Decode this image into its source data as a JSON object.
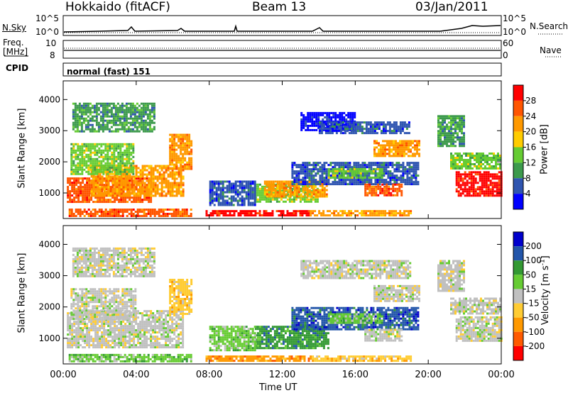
{
  "header": {
    "station": "Hokkaido (fitACF)",
    "beam": "Beam 13",
    "date": "03/Jan/2011"
  },
  "top_panels": {
    "nsky_label": "N.Sky",
    "nsky_ticks_left": [
      "10^5",
      "10^0"
    ],
    "nsearch_label": "N.Search",
    "nsearch_ticks_right": [
      "10^5",
      "10^0"
    ],
    "freq_label": "Freq.",
    "freq_unit": "[MHz]",
    "freq_ticks": [
      "10",
      "8"
    ],
    "nave_label": "Nave",
    "nave_ticks": [
      "60",
      "0"
    ],
    "cpid_label": "CPID",
    "cpid_text": "normal (fast) 151"
  },
  "colors": {
    "power": [
      "#0000ff",
      "#2f55b0",
      "#3c9a4c",
      "#66cc33",
      "#ffcc00",
      "#ff9900",
      "#ff5500",
      "#ff0000"
    ],
    "velocity": [
      "#ff0000",
      "#ff5a00",
      "#ff9900",
      "#ffcc33",
      "#c0c0c0",
      "#66cc33",
      "#339933",
      "#2255aa",
      "#0000cc"
    ]
  },
  "chart_data": [
    {
      "type": "heatmap",
      "name": "power-panel",
      "ylabel": "Slant Range [km]",
      "xlabel": "",
      "x_ticks": [
        "00:00",
        "04:00",
        "08:00",
        "12:00",
        "16:00",
        "20:00",
        "00:00"
      ],
      "y_ticks": [
        1000,
        2000,
        3000,
        4000
      ],
      "xlim": [
        0,
        24
      ],
      "ylim": [
        180,
        4600
      ],
      "colorbar": {
        "label": "Power [dB]",
        "ticks": [
          "28",
          "24",
          "20",
          "16",
          "12",
          "8",
          "4"
        ]
      },
      "regions": [
        {
          "t0": 0.2,
          "t1": 4.8,
          "r0": 700,
          "r1": 1500,
          "level": 6
        },
        {
          "t0": 1.5,
          "t1": 6.6,
          "r0": 900,
          "r1": 1900,
          "level": 5
        },
        {
          "t0": 0.4,
          "t1": 3.8,
          "r0": 1600,
          "r1": 2600,
          "level": 3
        },
        {
          "t0": 5.8,
          "t1": 7.0,
          "r0": 1800,
          "r1": 2900,
          "level": 5
        },
        {
          "t0": 0.5,
          "t1": 5.0,
          "r0": 3000,
          "r1": 3900,
          "level": 2
        },
        {
          "t0": 0.3,
          "t1": 7.0,
          "r0": 250,
          "r1": 500,
          "level": 6
        },
        {
          "t0": 7.8,
          "t1": 13.5,
          "r0": 250,
          "r1": 450,
          "level": 7
        },
        {
          "t0": 13.5,
          "t1": 19.0,
          "r0": 250,
          "r1": 450,
          "level": 5
        },
        {
          "t0": 10.5,
          "t1": 14.0,
          "r0": 700,
          "r1": 1300,
          "level": 3
        },
        {
          "t0": 11.0,
          "t1": 14.5,
          "r0": 900,
          "r1": 1400,
          "level": 5
        },
        {
          "t0": 12.5,
          "t1": 19.5,
          "r0": 1300,
          "r1": 2000,
          "level": 1
        },
        {
          "t0": 14.5,
          "t1": 17.5,
          "r0": 1500,
          "r1": 1800,
          "level": 3
        },
        {
          "t0": 16.5,
          "t1": 18.5,
          "r0": 900,
          "r1": 1300,
          "level": 6
        },
        {
          "t0": 13.0,
          "t1": 16.0,
          "r0": 3000,
          "r1": 3600,
          "level": 0
        },
        {
          "t0": 14.0,
          "t1": 19.0,
          "r0": 2900,
          "r1": 3300,
          "level": 1
        },
        {
          "t0": 17.0,
          "t1": 19.5,
          "r0": 2200,
          "r1": 2700,
          "level": 5
        },
        {
          "t0": 21.5,
          "t1": 24.0,
          "r0": 900,
          "r1": 1700,
          "level": 7
        },
        {
          "t0": 21.2,
          "t1": 24.0,
          "r0": 1800,
          "r1": 2300,
          "level": 3
        },
        {
          "t0": 20.5,
          "t1": 22.0,
          "r0": 2500,
          "r1": 3500,
          "level": 2
        },
        {
          "t0": 8.0,
          "t1": 10.5,
          "r0": 600,
          "r1": 1400,
          "level": 1
        }
      ]
    },
    {
      "type": "heatmap",
      "name": "velocity-panel",
      "ylabel": "Slant Range [km]",
      "xlabel": "Time UT",
      "x_ticks": [
        "00:00",
        "04:00",
        "08:00",
        "12:00",
        "16:00",
        "20:00",
        "00:00"
      ],
      "y_ticks": [
        1000,
        2000,
        3000,
        4000
      ],
      "xlim": [
        0,
        24
      ],
      "ylim": [
        180,
        4600
      ],
      "colorbar": {
        "label": "Velocity [m s^-1]",
        "ticks": [
          "200",
          "100",
          "50",
          "15",
          "-15",
          "-50",
          "-100",
          "-200"
        ]
      },
      "regions": [
        {
          "t0": 0.2,
          "t1": 6.6,
          "r0": 700,
          "r1": 1900,
          "level": 4
        },
        {
          "t0": 0.4,
          "t1": 4.0,
          "r0": 1600,
          "r1": 2600,
          "level": 4
        },
        {
          "t0": 5.8,
          "t1": 7.0,
          "r0": 1800,
          "r1": 2900,
          "level": 3
        },
        {
          "t0": 0.5,
          "t1": 5.0,
          "r0": 3000,
          "r1": 3900,
          "level": 4
        },
        {
          "t0": 0.3,
          "t1": 7.0,
          "r0": 250,
          "r1": 500,
          "level": 5
        },
        {
          "t0": 7.8,
          "t1": 13.5,
          "r0": 250,
          "r1": 450,
          "level": 2
        },
        {
          "t0": 13.5,
          "t1": 19.0,
          "r0": 250,
          "r1": 450,
          "level": 3
        },
        {
          "t0": 10.5,
          "t1": 14.5,
          "r0": 700,
          "r1": 1400,
          "level": 6
        },
        {
          "t0": 12.5,
          "t1": 19.5,
          "r0": 1300,
          "r1": 2000,
          "level": 7
        },
        {
          "t0": 14.5,
          "t1": 17.5,
          "r0": 1500,
          "r1": 1800,
          "level": 5
        },
        {
          "t0": 16.5,
          "t1": 18.5,
          "r0": 900,
          "r1": 1300,
          "level": 4
        },
        {
          "t0": 13.0,
          "t1": 19.0,
          "r0": 2900,
          "r1": 3500,
          "level": 4
        },
        {
          "t0": 17.0,
          "t1": 19.5,
          "r0": 2200,
          "r1": 2700,
          "level": 4
        },
        {
          "t0": 21.5,
          "t1": 24.0,
          "r0": 900,
          "r1": 1700,
          "level": 4
        },
        {
          "t0": 21.2,
          "t1": 24.0,
          "r0": 1800,
          "r1": 2300,
          "level": 4
        },
        {
          "t0": 20.5,
          "t1": 22.0,
          "r0": 2500,
          "r1": 3500,
          "level": 4
        },
        {
          "t0": 8.0,
          "t1": 10.5,
          "r0": 600,
          "r1": 1400,
          "level": 5
        }
      ]
    }
  ]
}
